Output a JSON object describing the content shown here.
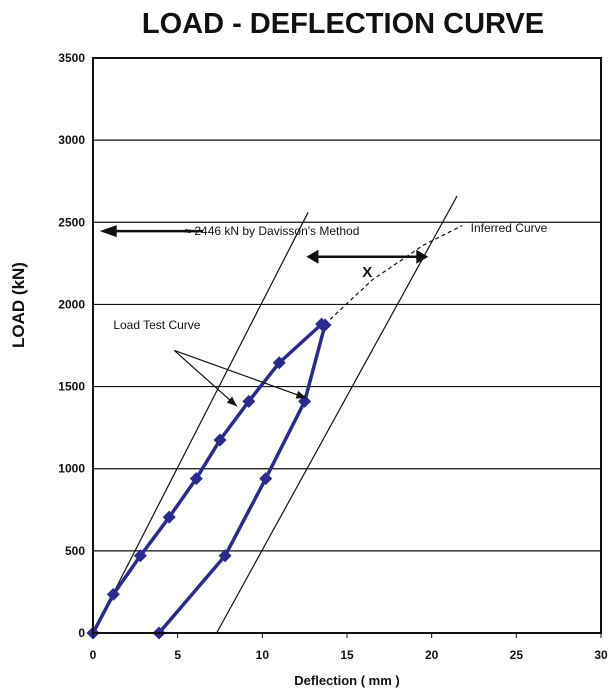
{
  "chart_data": {
    "type": "line",
    "title": "LOAD - DEFLECTION CURVE",
    "xlabel": "Deflection  ( mm )",
    "ylabel": "LOAD (kN)",
    "xlim": [
      0,
      30
    ],
    "ylim": [
      0,
      3500
    ],
    "xticks": [
      0,
      5,
      10,
      15,
      20,
      25,
      30
    ],
    "yticks": [
      0,
      500,
      1000,
      1500,
      2000,
      2500,
      3000,
      3500
    ],
    "grid": "horizontal",
    "series": [
      {
        "name": "Load Test Curve",
        "color": "#2b2a8e",
        "x": [
          0,
          1.2,
          2.8,
          4.5,
          6.1,
          7.5,
          9.2,
          11.0,
          13.5,
          13.7,
          12.5,
          10.2,
          7.8,
          3.9
        ],
        "y": [
          0,
          235,
          470,
          705,
          940,
          1175,
          1410,
          1645,
          1880,
          1875,
          1410,
          940,
          470,
          0
        ]
      }
    ],
    "inferred_curve": {
      "label": "Inferred Curve",
      "x": [
        13.7,
        16.5,
        19.5,
        21.8
      ],
      "y": [
        1880,
        2150,
        2360,
        2480
      ]
    },
    "davisson_lines": [
      {
        "x": [
          0,
          12.7
        ],
        "y": [
          0,
          2560
        ]
      },
      {
        "x": [
          7.3,
          21.5
        ],
        "y": [
          0,
          2660
        ]
      }
    ],
    "annotations": {
      "davisson_text": "≈ 2446 kN by Davisson's Method",
      "load_test_label": "Load Test Curve",
      "inferred_label": "Inferred Curve",
      "x_marker": "X",
      "davisson_load": 2446
    }
  }
}
